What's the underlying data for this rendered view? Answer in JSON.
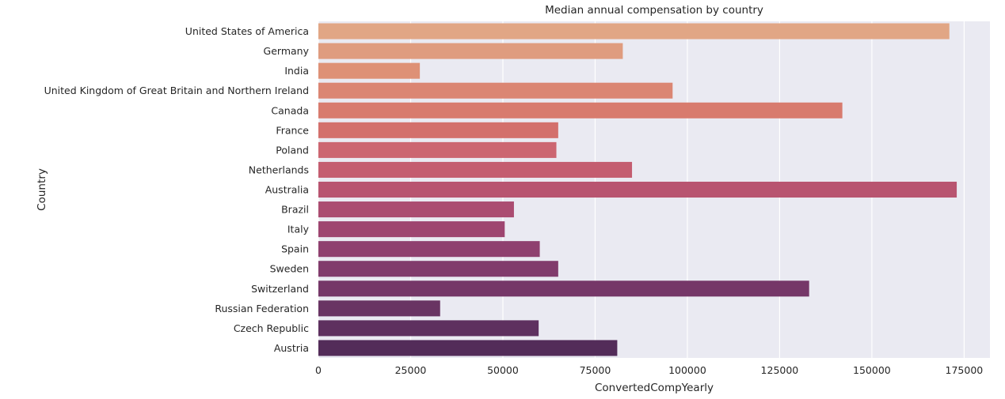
{
  "chart_data": {
    "type": "bar",
    "orientation": "horizontal",
    "title": "Median annual compensation by country",
    "xlabel": "ConvertedCompYearly",
    "ylabel": "Country",
    "xlim": [
      0,
      182000
    ],
    "xticks": [
      0,
      25000,
      50000,
      75000,
      100000,
      125000,
      150000,
      175000
    ],
    "xtick_labels": [
      "0",
      "25000",
      "50000",
      "75000",
      "100000",
      "125000",
      "150000",
      "175000"
    ],
    "grid": true,
    "background": "#eaeaf2",
    "categories": [
      "United States of America",
      "Germany",
      "India",
      "United Kingdom of Great Britain and Northern Ireland",
      "Canada",
      "France",
      "Poland",
      "Netherlands",
      "Australia",
      "Brazil",
      "Italy",
      "Spain",
      "Sweden",
      "Switzerland",
      "Russian Federation",
      "Czech Republic",
      "Austria"
    ],
    "values": [
      171000,
      82500,
      27500,
      96000,
      142000,
      65000,
      64500,
      85000,
      173000,
      53000,
      50500,
      60000,
      65000,
      133000,
      33000,
      59700,
      81000
    ],
    "colors": [
      "#e1a685",
      "#df9c7f",
      "#de9176",
      "#db8673",
      "#d87b6e",
      "#d3706c",
      "#cc6671",
      "#c45d70",
      "#b85470",
      "#ab4c71",
      "#9e4570",
      "#8f406f",
      "#813b6c",
      "#753768",
      "#693463",
      "#5e305f",
      "#532c59"
    ]
  }
}
